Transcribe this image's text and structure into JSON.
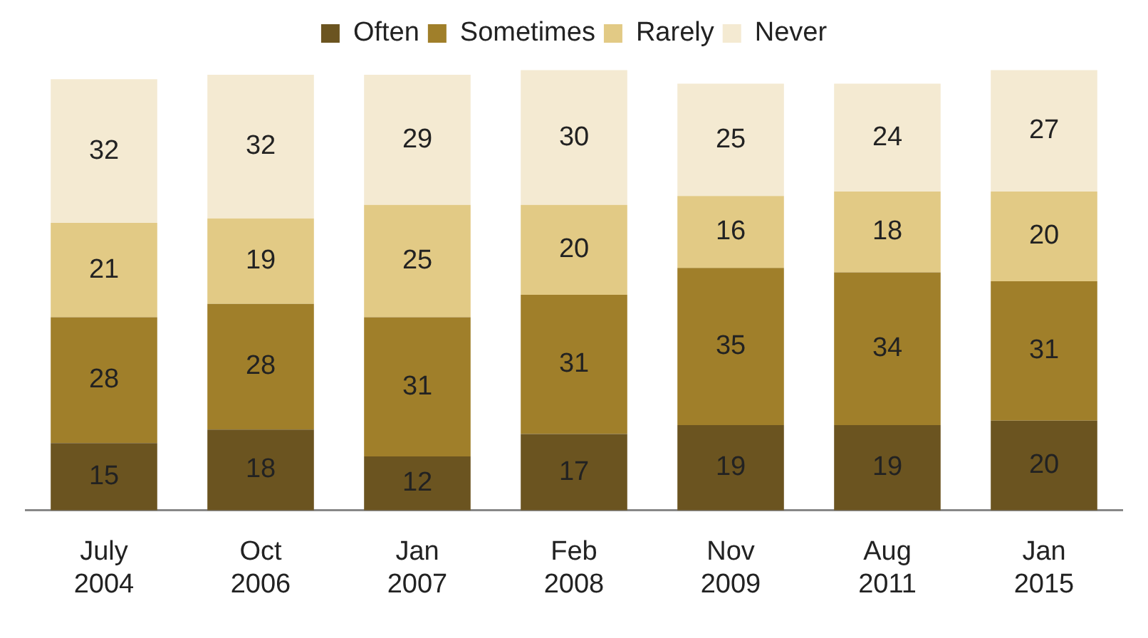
{
  "chart_data": {
    "type": "bar",
    "stacked": true,
    "data_labels": true,
    "legend": "top",
    "grid": false,
    "categories": [
      "July 2004",
      "Oct 2006",
      "Jan 2007",
      "Feb 2008",
      "Nov 2009",
      "Aug 2011",
      "Jan 2015"
    ],
    "series": [
      {
        "name": "Often",
        "color": "#6b5420",
        "values": [
          15,
          18,
          12,
          17,
          19,
          19,
          20
        ]
      },
      {
        "name": "Sometimes",
        "color": "#a07f2a",
        "values": [
          28,
          28,
          31,
          31,
          35,
          34,
          31
        ]
      },
      {
        "name": "Rarely",
        "color": "#e2ca85",
        "values": [
          21,
          19,
          25,
          20,
          16,
          18,
          20
        ]
      },
      {
        "name": "Never",
        "color": "#f4ead2",
        "values": [
          32,
          32,
          29,
          30,
          25,
          24,
          27
        ]
      }
    ]
  }
}
